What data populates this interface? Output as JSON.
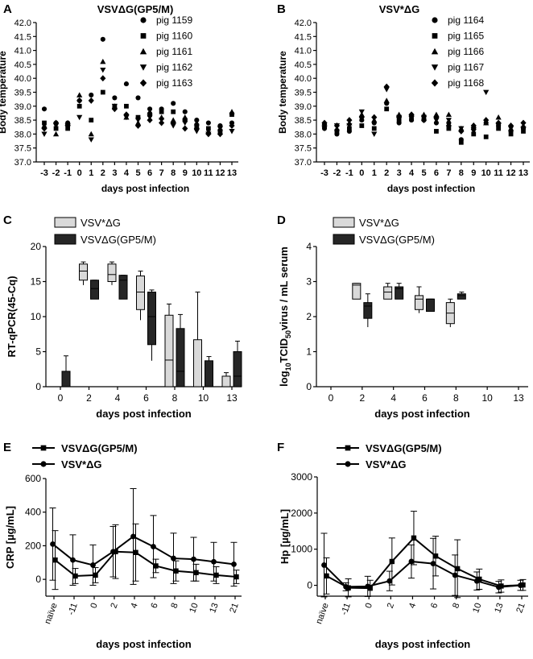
{
  "colors": {
    "ink": "#000000",
    "light_fill": "#d9d9d9",
    "dark_fill": "#262626"
  },
  "chart_data": [
    {
      "panel": "A",
      "type": "scatter",
      "title": "VSVΔG(GP5/M)",
      "xlabel": "days post infection",
      "ylabel": "Body temperature",
      "categories": [
        "-3",
        "-2",
        "-1",
        "0",
        "1",
        "2",
        "3",
        "4",
        "5",
        "6",
        "7",
        "8",
        "9",
        "10",
        "11",
        "12",
        "13"
      ],
      "yticks": [
        "37.0",
        "37.5",
        "38.0",
        "38.5",
        "39.0",
        "39.5",
        "40.0",
        "40.5",
        "41.0",
        "41.5",
        "42.0"
      ],
      "ylim": [
        37.0,
        42.0
      ],
      "series": [
        {
          "name": "pig 1159",
          "marker": "circle",
          "values": [
            38.9,
            38.4,
            38.4,
            39.2,
            39.4,
            41.4,
            39.3,
            39.8,
            39.3,
            38.9,
            38.9,
            39.1,
            38.8,
            38.5,
            38.4,
            38.3,
            38.4
          ]
        },
        {
          "name": "pig 1160",
          "marker": "square",
          "values": [
            38.4,
            38.2,
            38.2,
            39.0,
            38.5,
            39.5,
            39.0,
            39.0,
            38.6,
            38.7,
            38.8,
            38.8,
            38.5,
            38.3,
            38.2,
            38.1,
            38.7
          ]
        },
        {
          "name": "pig 1161",
          "marker": "triangle",
          "values": [
            38.3,
            38.0,
            38.4,
            39.4,
            38.0,
            40.6,
            39.0,
            38.6,
            38.4,
            38.8,
            38.6,
            38.5,
            38.6,
            38.4,
            38.1,
            38.2,
            38.8
          ]
        },
        {
          "name": "pig 1162",
          "marker": "tri-down",
          "values": [
            38.0,
            38.3,
            38.3,
            38.6,
            37.8,
            40.3,
            39.0,
            38.6,
            38.5,
            38.6,
            38.5,
            38.3,
            38.4,
            38.1,
            38.0,
            38.2,
            38.1
          ]
        },
        {
          "name": "pig 1163",
          "marker": "diamond",
          "values": [
            38.2,
            38.4,
            38.3,
            39.2,
            39.2,
            40.0,
            38.9,
            38.7,
            38.3,
            38.5,
            38.4,
            38.4,
            38.2,
            38.2,
            38.0,
            38.0,
            38.3
          ]
        }
      ]
    },
    {
      "panel": "B",
      "type": "scatter",
      "title": "VSV*ΔG",
      "xlabel": "days post infection",
      "ylabel": "Body temperature",
      "categories": [
        "-3",
        "-2",
        "-1",
        "0",
        "1",
        "2",
        "3",
        "4",
        "5",
        "6",
        "7",
        "8",
        "9",
        "10",
        "11",
        "12",
        "13"
      ],
      "yticks": [
        "37.0",
        "37.5",
        "38.0",
        "38.5",
        "39.0",
        "39.5",
        "40.0",
        "40.5",
        "41.0",
        "41.5",
        "42.0"
      ],
      "ylim": [
        37.0,
        42.0
      ],
      "series": [
        {
          "name": "pig 1164",
          "marker": "circle",
          "values": [
            38.2,
            38.0,
            38.1,
            38.5,
            38.4,
            39.1,
            38.4,
            38.5,
            38.5,
            38.4,
            38.4,
            37.8,
            38.2,
            38.4,
            38.3,
            38.1,
            38.2
          ]
        },
        {
          "name": "pig 1165",
          "marker": "square",
          "values": [
            38.3,
            38.1,
            38.2,
            38.3,
            38.2,
            38.9,
            38.5,
            38.6,
            38.6,
            38.1,
            38.2,
            37.7,
            38.0,
            37.9,
            38.2,
            38.0,
            38.1
          ]
        },
        {
          "name": "pig 1166",
          "marker": "triangle",
          "values": [
            38.4,
            38.2,
            38.4,
            38.7,
            38.5,
            39.2,
            38.7,
            38.7,
            38.7,
            38.7,
            38.7,
            38.2,
            38.3,
            38.4,
            38.6,
            38.2,
            38.3
          ]
        },
        {
          "name": "pig 1167",
          "marker": "tri-down",
          "values": [
            38.2,
            38.3,
            38.3,
            38.8,
            38.0,
            39.6,
            38.6,
            38.6,
            38.6,
            38.5,
            38.5,
            38.2,
            38.1,
            39.5,
            38.3,
            38.2,
            38.2
          ]
        },
        {
          "name": "pig 1168",
          "marker": "diamond",
          "values": [
            38.4,
            38.3,
            38.5,
            38.6,
            38.6,
            39.7,
            38.6,
            38.7,
            38.5,
            38.6,
            38.3,
            38.1,
            38.3,
            38.5,
            38.4,
            38.3,
            38.4
          ]
        }
      ]
    },
    {
      "panel": "C",
      "type": "box",
      "xlabel": "days post infection",
      "ylabel": "RT-qPCR(45-Cq)",
      "categories": [
        "0",
        "2",
        "4",
        "6",
        "8",
        "10",
        "13"
      ],
      "yticks": [
        "0",
        "5",
        "10",
        "15",
        "20"
      ],
      "ylim": [
        0,
        20
      ],
      "series": [
        {
          "name": "VSV*ΔG",
          "fill": "light",
          "boxes": [
            null,
            {
              "min": 14.5,
              "q1": 15.2,
              "median": 16.5,
              "q3": 17.5,
              "max": 17.8
            },
            {
              "min": 14.5,
              "q1": 15.0,
              "median": 16.0,
              "q3": 17.5,
              "max": 17.8
            },
            {
              "min": 9.5,
              "q1": 11.0,
              "median": 13.5,
              "q3": 15.8,
              "max": 16.5
            },
            {
              "min": 0,
              "q1": 0,
              "median": 3.8,
              "q3": 10.2,
              "max": 11.8
            },
            {
              "min": 0,
              "q1": 0,
              "median": 0,
              "q3": 6.7,
              "max": 13.5
            },
            {
              "min": 0,
              "q1": 0,
              "median": 0,
              "q3": 1.5,
              "max": 2.0
            }
          ]
        },
        {
          "name": "VSVΔG(GP5/M)",
          "fill": "dark",
          "boxes": [
            {
              "min": 0,
              "q1": 0,
              "median": 0,
              "q3": 2.2,
              "max": 4.4
            },
            {
              "min": 12.5,
              "q1": 12.5,
              "median": 14.0,
              "q3": 15.2,
              "max": 15.2
            },
            {
              "min": 12.5,
              "q1": 12.5,
              "median": 15.2,
              "q3": 15.9,
              "max": 15.9
            },
            {
              "min": 3.7,
              "q1": 6.0,
              "median": 10.0,
              "q3": 13.5,
              "max": 13.8
            },
            {
              "min": 0,
              "q1": 0,
              "median": 2.2,
              "q3": 8.3,
              "max": 10.3
            },
            {
              "min": 0,
              "q1": 0,
              "median": 0,
              "q3": 3.7,
              "max": 4.3
            },
            {
              "min": 0,
              "q1": 0,
              "median": 1.5,
              "q3": 5.0,
              "max": 6.5
            }
          ]
        }
      ]
    },
    {
      "panel": "D",
      "type": "box",
      "xlabel": "days post infection",
      "ylabel_parts": [
        "log",
        "10",
        "TCID",
        "50",
        "virus / mL serum"
      ],
      "categories": [
        "0",
        "2",
        "4",
        "6",
        "8",
        "10",
        "13"
      ],
      "yticks": [
        "0",
        "1",
        "2",
        "3",
        "4"
      ],
      "ylim": [
        0,
        4
      ],
      "series": [
        {
          "name": "VSV*ΔG",
          "fill": "light",
          "boxes": [
            null,
            {
              "min": 2.5,
              "q1": 2.5,
              "median": 2.9,
              "q3": 2.95,
              "max": 2.95
            },
            {
              "min": 2.5,
              "q1": 2.5,
              "median": 2.7,
              "q3": 2.85,
              "max": 2.95
            },
            {
              "min": 2.1,
              "q1": 2.2,
              "median": 2.5,
              "q3": 2.6,
              "max": 2.85
            },
            {
              "min": 1.7,
              "q1": 1.8,
              "median": 2.1,
              "q3": 2.4,
              "max": 2.5
            },
            null,
            null
          ]
        },
        {
          "name": "VSVΔG(GP5/M)",
          "fill": "dark",
          "boxes": [
            null,
            {
              "min": 1.7,
              "q1": 1.95,
              "median": 2.3,
              "q3": 2.4,
              "max": 2.65
            },
            {
              "min": 2.5,
              "q1": 2.5,
              "median": 2.8,
              "q3": 2.85,
              "max": 2.95
            },
            {
              "min": 2.15,
              "q1": 2.15,
              "median": 2.5,
              "q3": 2.5,
              "max": 2.5
            },
            {
              "min": 2.5,
              "q1": 2.5,
              "median": 2.6,
              "q3": 2.65,
              "max": 2.7
            },
            null,
            null
          ]
        }
      ]
    },
    {
      "panel": "E",
      "type": "line",
      "xlabel": "days post infection",
      "ylabel": "CRP [µg/mL]",
      "categories": [
        "naïve",
        "-11",
        "0",
        "2",
        "4",
        "6",
        "8",
        "10",
        "13",
        "21"
      ],
      "yticks": [
        "0",
        "200",
        "400",
        "600"
      ],
      "ylim": [
        -100,
        600
      ],
      "series": [
        {
          "name": "VSVΔG(GP5/M)",
          "marker": "square",
          "values": [
            115,
            20,
            25,
            165,
            160,
            80,
            50,
            40,
            25,
            15
          ],
          "err": [
            175,
            45,
            45,
            160,
            170,
            40,
            60,
            50,
            50,
            40
          ]
        },
        {
          "name": "VSV*ΔG",
          "marker": "circle",
          "values": [
            210,
            115,
            85,
            165,
            255,
            195,
            125,
            120,
            105,
            90
          ],
          "err": [
            215,
            150,
            120,
            150,
            285,
            185,
            150,
            130,
            115,
            130
          ]
        }
      ]
    },
    {
      "panel": "F",
      "type": "line",
      "xlabel": "days post infection",
      "ylabel": "Hp [µg/mL]",
      "categories": [
        "naïve",
        "-11",
        "0",
        "2",
        "4",
        "6",
        "8",
        "10",
        "13",
        "21"
      ],
      "yticks": [
        "0",
        "1000",
        "2000",
        "3000"
      ],
      "ylim": [
        -300,
        3000
      ],
      "series": [
        {
          "name": "VSVΔG(GP5/M)",
          "marker": "square",
          "values": [
            260,
            -70,
            -80,
            660,
            1310,
            810,
            460,
            170,
            -20,
            10
          ],
          "err": [
            500,
            250,
            220,
            650,
            740,
            550,
            800,
            280,
            170,
            150
          ]
        },
        {
          "name": "VSV*ΔG",
          "marker": "circle",
          "values": [
            560,
            -40,
            -30,
            120,
            660,
            600,
            280,
            120,
            -50,
            0
          ],
          "err": [
            880,
            110,
            280,
            270,
            460,
            700,
            560,
            250,
            160,
            140
          ]
        }
      ]
    }
  ]
}
